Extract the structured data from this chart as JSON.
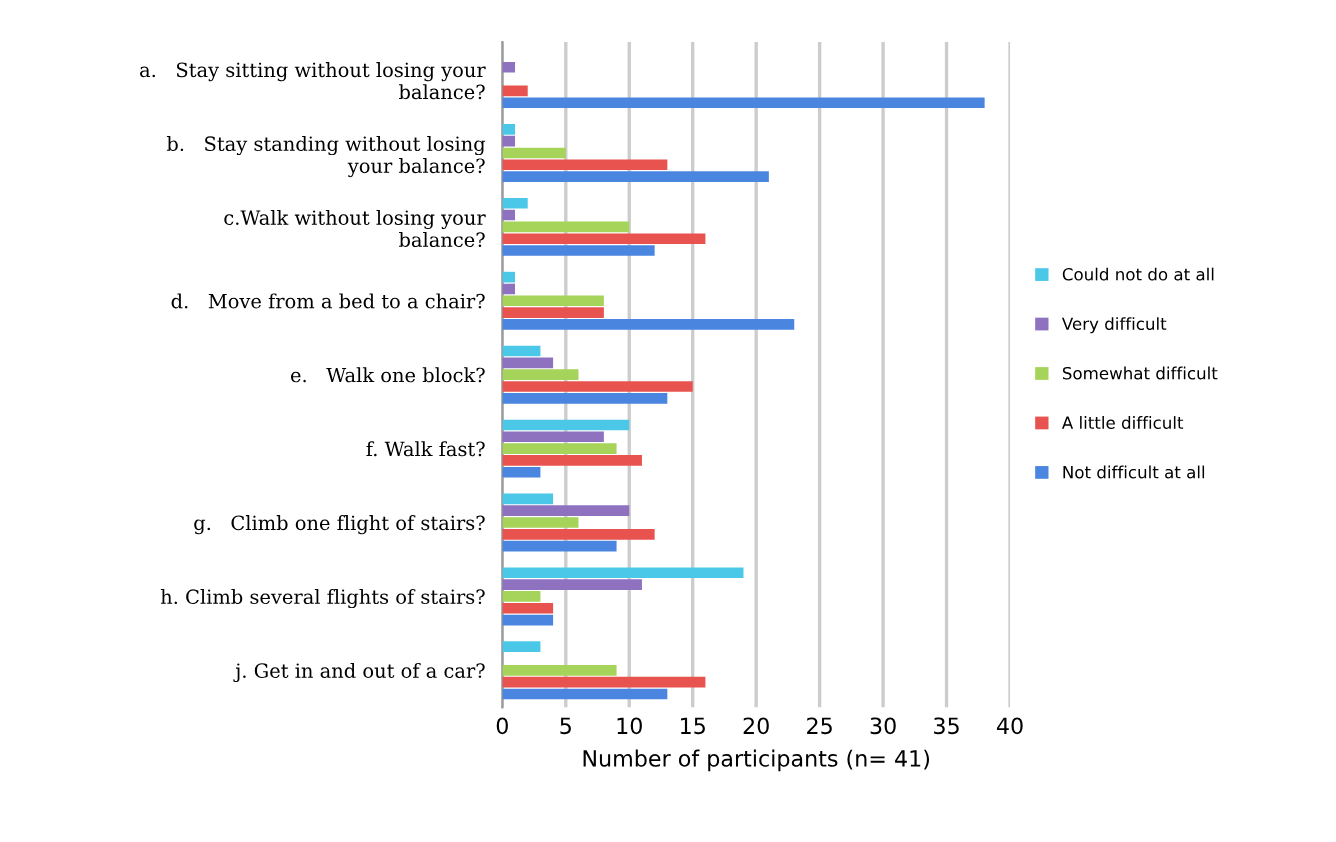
{
  "chart_data": {
    "type": "bar",
    "orientation": "horizontal",
    "xlabel": "Number of participants (n= 41)",
    "categories": [
      "a.   Stay sitting without losing your\nbalance?",
      "b.   Stay standing without losing\nyour balance?",
      "c.Walk without losing your\nbalance?",
      "d.   Move from a bed to a chair?",
      "e.   Walk one block?",
      "f. Walk fast?",
      "g.   Climb one flight of stairs?",
      "h. Climb several flights of stairs?",
      "j. Get in and out of a car?"
    ],
    "series": [
      {
        "name": "Could not do at all",
        "color": "#4bc8e8",
        "values": [
          0,
          1,
          2,
          1,
          3,
          10,
          4,
          19,
          3
        ]
      },
      {
        "name": "Very difficult",
        "color": "#8e72c0",
        "values": [
          1,
          1,
          1,
          1,
          4,
          8,
          10,
          11,
          0
        ]
      },
      {
        "name": "Somewhat difficult",
        "color": "#a6d35a",
        "values": [
          0,
          5,
          10,
          8,
          6,
          9,
          6,
          3,
          9
        ]
      },
      {
        "name": "A little difficult",
        "color": "#e8534f",
        "values": [
          2,
          13,
          16,
          8,
          15,
          11,
          12,
          4,
          16
        ]
      },
      {
        "name": "Not difficult at all",
        "color": "#4a86e0",
        "values": [
          38,
          21,
          12,
          23,
          13,
          3,
          9,
          4,
          13
        ]
      }
    ],
    "xlim": [
      0,
      40
    ],
    "xticks": [
      0,
      5,
      10,
      15,
      20,
      25,
      30,
      35,
      40
    ],
    "grid": "x",
    "legend": "right"
  }
}
